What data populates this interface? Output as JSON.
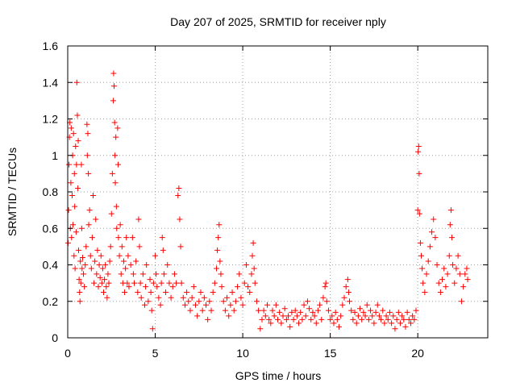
{
  "chart_data": {
    "type": "scatter",
    "title": "Day 207 of 2025, SRMTID for receiver nply",
    "xlabel": "GPS time / hours",
    "ylabel": "SRMTID / TECUs",
    "xlim": [
      0,
      24
    ],
    "ylim": [
      0,
      1.6
    ],
    "xticks": [
      0,
      5,
      10,
      15,
      20
    ],
    "xtick_labels": [
      "0",
      "5",
      "10",
      "15",
      "20"
    ],
    "yticks": [
      0,
      0.2,
      0.4,
      0.6,
      0.8,
      1,
      1.2,
      1.4,
      1.6
    ],
    "ytick_labels": [
      "0",
      "0.2",
      "0.4",
      "0.6",
      "0.8",
      "1",
      "1.2",
      "1.4",
      "1.6"
    ],
    "grid": true,
    "marker": "+",
    "color": "#ff0000",
    "series": [
      {
        "name": "SRMTID",
        "points": [
          [
            0.02,
            0.52
          ],
          [
            0.05,
            0.7
          ],
          [
            0.07,
            0.95
          ],
          [
            0.1,
            1.1
          ],
          [
            0.12,
            1.18
          ],
          [
            0.15,
            0.6
          ],
          [
            0.18,
            0.85
          ],
          [
            0.2,
            1.15
          ],
          [
            0.22,
            0.55
          ],
          [
            0.25,
            0.78
          ],
          [
            0.28,
            1.0
          ],
          [
            0.3,
            0.62
          ],
          [
            0.33,
            1.12
          ],
          [
            0.36,
            0.45
          ],
          [
            0.38,
            0.9
          ],
          [
            0.4,
            0.72
          ],
          [
            0.42,
            0.38
          ],
          [
            0.45,
            1.05
          ],
          [
            0.48,
            0.58
          ],
          [
            0.5,
            0.95
          ],
          [
            0.52,
            1.4
          ],
          [
            0.55,
            1.22
          ],
          [
            0.58,
            0.82
          ],
          [
            0.6,
            1.08
          ],
          [
            0.62,
            0.48
          ],
          [
            0.65,
            0.32
          ],
          [
            0.68,
            0.25
          ],
          [
            0.7,
            0.2
          ],
          [
            0.72,
            0.42
          ],
          [
            0.75,
            0.3
          ],
          [
            0.78,
            0.95
          ],
          [
            0.8,
            0.6
          ],
          [
            0.82,
            0.38
          ],
          [
            0.85,
            0.44
          ],
          [
            0.9,
            0.35
          ],
          [
            0.95,
            0.28
          ],
          [
            1.0,
            0.4
          ],
          [
            1.05,
            0.5
          ],
          [
            1.1,
            1.17
          ],
          [
            1.12,
            1.0
          ],
          [
            1.15,
            1.12
          ],
          [
            1.18,
            0.9
          ],
          [
            1.2,
            0.62
          ],
          [
            1.25,
            0.7
          ],
          [
            1.3,
            0.45
          ],
          [
            1.35,
            0.38
          ],
          [
            1.4,
            0.55
          ],
          [
            1.45,
            0.78
          ],
          [
            1.5,
            0.3
          ],
          [
            1.55,
            0.42
          ],
          [
            1.6,
            0.65
          ],
          [
            1.65,
            0.35
          ],
          [
            1.7,
            0.48
          ],
          [
            1.75,
            0.28
          ],
          [
            1.8,
            0.4
          ],
          [
            1.85,
            0.33
          ],
          [
            1.9,
            0.45
          ],
          [
            1.95,
            0.3
          ],
          [
            2.0,
            0.38
          ],
          [
            2.05,
            0.25
          ],
          [
            2.1,
            0.32
          ],
          [
            2.15,
            0.4
          ],
          [
            2.2,
            0.28
          ],
          [
            2.25,
            0.22
          ],
          [
            2.3,
            0.35
          ],
          [
            2.35,
            0.3
          ],
          [
            2.4,
            0.42
          ],
          [
            2.45,
            0.5
          ],
          [
            2.5,
            0.68
          ],
          [
            2.55,
            0.9
          ],
          [
            2.6,
            1.3
          ],
          [
            2.62,
            1.45
          ],
          [
            2.65,
            1.38
          ],
          [
            2.68,
            1.18
          ],
          [
            2.7,
            1.0
          ],
          [
            2.72,
            0.85
          ],
          [
            2.75,
            1.1
          ],
          [
            2.78,
            0.72
          ],
          [
            2.8,
            0.6
          ],
          [
            2.85,
            1.15
          ],
          [
            2.88,
            0.95
          ],
          [
            2.9,
            0.55
          ],
          [
            2.95,
            0.45
          ],
          [
            3.0,
            0.62
          ],
          [
            3.05,
            0.35
          ],
          [
            3.1,
            0.5
          ],
          [
            3.15,
            0.3
          ],
          [
            3.2,
            0.42
          ],
          [
            3.25,
            0.25
          ],
          [
            3.3,
            0.38
          ],
          [
            3.35,
            0.55
          ],
          [
            3.4,
            0.3
          ],
          [
            3.45,
            0.45
          ],
          [
            3.5,
            0.28
          ],
          [
            3.6,
            0.4
          ],
          [
            3.7,
            0.55
          ],
          [
            3.75,
            0.35
          ],
          [
            3.8,
            0.3
          ],
          [
            3.9,
            0.42
          ],
          [
            4.0,
            0.25
          ],
          [
            4.05,
            0.65
          ],
          [
            4.1,
            0.5
          ],
          [
            4.15,
            0.3
          ],
          [
            4.2,
            0.22
          ],
          [
            4.3,
            0.35
          ],
          [
            4.4,
            0.18
          ],
          [
            4.45,
            0.28
          ],
          [
            4.5,
            0.4
          ],
          [
            4.6,
            0.2
          ],
          [
            4.7,
            0.32
          ],
          [
            4.75,
            0.25
          ],
          [
            4.8,
            0.15
          ],
          [
            4.85,
            0.05
          ],
          [
            4.9,
            0.3
          ],
          [
            5.0,
            0.45
          ],
          [
            5.05,
            0.35
          ],
          [
            5.1,
            0.28
          ],
          [
            5.2,
            0.22
          ],
          [
            5.3,
            0.18
          ],
          [
            5.35,
            0.3
          ],
          [
            5.4,
            0.55
          ],
          [
            5.45,
            0.48
          ],
          [
            5.5,
            0.35
          ],
          [
            5.6,
            0.25
          ],
          [
            5.7,
            0.4
          ],
          [
            5.8,
            0.3
          ],
          [
            5.9,
            0.22
          ],
          [
            6.0,
            0.28
          ],
          [
            6.1,
            0.35
          ],
          [
            6.2,
            0.3
          ],
          [
            6.3,
            0.78
          ],
          [
            6.35,
            0.82
          ],
          [
            6.4,
            0.65
          ],
          [
            6.45,
            0.5
          ],
          [
            6.5,
            0.3
          ],
          [
            6.6,
            0.22
          ],
          [
            6.7,
            0.18
          ],
          [
            6.8,
            0.25
          ],
          [
            6.9,
            0.2
          ],
          [
            7.0,
            0.15
          ],
          [
            7.1,
            0.22
          ],
          [
            7.2,
            0.28
          ],
          [
            7.3,
            0.18
          ],
          [
            7.4,
            0.12
          ],
          [
            7.5,
            0.2
          ],
          [
            7.6,
            0.25
          ],
          [
            7.7,
            0.15
          ],
          [
            7.8,
            0.22
          ],
          [
            7.9,
            0.18
          ],
          [
            8.0,
            0.1
          ],
          [
            8.1,
            0.2
          ],
          [
            8.2,
            0.15
          ],
          [
            8.3,
            0.25
          ],
          [
            8.4,
            0.3
          ],
          [
            8.5,
            0.38
          ],
          [
            8.55,
            0.48
          ],
          [
            8.6,
            0.55
          ],
          [
            8.65,
            0.62
          ],
          [
            8.7,
            0.42
          ],
          [
            8.75,
            0.35
          ],
          [
            8.8,
            0.28
          ],
          [
            8.9,
            0.2
          ],
          [
            9.0,
            0.15
          ],
          [
            9.1,
            0.22
          ],
          [
            9.2,
            0.12
          ],
          [
            9.3,
            0.18
          ],
          [
            9.4,
            0.25
          ],
          [
            9.5,
            0.15
          ],
          [
            9.6,
            0.2
          ],
          [
            9.7,
            0.28
          ],
          [
            9.8,
            0.35
          ],
          [
            9.9,
            0.22
          ],
          [
            10.0,
            0.18
          ],
          [
            10.1,
            0.3
          ],
          [
            10.2,
            0.4
          ],
          [
            10.3,
            0.28
          ],
          [
            10.4,
            0.25
          ],
          [
            10.5,
            0.35
          ],
          [
            10.55,
            0.45
          ],
          [
            10.6,
            0.52
          ],
          [
            10.65,
            0.38
          ],
          [
            10.7,
            0.3
          ],
          [
            10.8,
            0.2
          ],
          [
            10.9,
            0.15
          ],
          [
            11.0,
            0.05
          ],
          [
            11.1,
            0.1
          ],
          [
            11.2,
            0.15
          ],
          [
            11.3,
            0.12
          ],
          [
            11.4,
            0.18
          ],
          [
            11.5,
            0.1
          ],
          [
            11.6,
            0.08
          ],
          [
            11.7,
            0.15
          ],
          [
            11.8,
            0.12
          ],
          [
            11.9,
            0.18
          ],
          [
            12.0,
            0.1
          ],
          [
            12.1,
            0.14
          ],
          [
            12.2,
            0.08
          ],
          [
            12.3,
            0.12
          ],
          [
            12.4,
            0.16
          ],
          [
            12.5,
            0.1
          ],
          [
            12.6,
            0.12
          ],
          [
            12.7,
            0.06
          ],
          [
            12.8,
            0.14
          ],
          [
            12.9,
            0.1
          ],
          [
            13.0,
            0.15
          ],
          [
            13.1,
            0.12
          ],
          [
            13.2,
            0.08
          ],
          [
            13.3,
            0.14
          ],
          [
            13.4,
            0.1
          ],
          [
            13.5,
            0.18
          ],
          [
            13.6,
            0.12
          ],
          [
            13.7,
            0.2
          ],
          [
            13.8,
            0.16
          ],
          [
            13.9,
            0.1
          ],
          [
            14.0,
            0.14
          ],
          [
            14.1,
            0.12
          ],
          [
            14.2,
            0.08
          ],
          [
            14.3,
            0.15
          ],
          [
            14.4,
            0.18
          ],
          [
            14.5,
            0.1
          ],
          [
            14.6,
            0.22
          ],
          [
            14.7,
            0.28
          ],
          [
            14.75,
            0.3
          ],
          [
            14.8,
            0.2
          ],
          [
            14.9,
            0.15
          ],
          [
            15.0,
            0.1
          ],
          [
            15.1,
            0.12
          ],
          [
            15.2,
            0.08
          ],
          [
            15.3,
            0.14
          ],
          [
            15.4,
            0.1
          ],
          [
            15.5,
            0.06
          ],
          [
            15.6,
            0.12
          ],
          [
            15.7,
            0.18
          ],
          [
            15.8,
            0.22
          ],
          [
            15.9,
            0.28
          ],
          [
            16.0,
            0.32
          ],
          [
            16.05,
            0.25
          ],
          [
            16.1,
            0.2
          ],
          [
            16.2,
            0.15
          ],
          [
            16.3,
            0.1
          ],
          [
            16.4,
            0.14
          ],
          [
            16.5,
            0.08
          ],
          [
            16.6,
            0.12
          ],
          [
            16.7,
            0.16
          ],
          [
            16.8,
            0.1
          ],
          [
            16.9,
            0.14
          ],
          [
            17.0,
            0.12
          ],
          [
            17.1,
            0.18
          ],
          [
            17.2,
            0.1
          ],
          [
            17.3,
            0.15
          ],
          [
            17.4,
            0.12
          ],
          [
            17.5,
            0.08
          ],
          [
            17.6,
            0.14
          ],
          [
            17.7,
            0.18
          ],
          [
            17.8,
            0.12
          ],
          [
            17.9,
            0.1
          ],
          [
            18.0,
            0.15
          ],
          [
            18.1,
            0.08
          ],
          [
            18.2,
            0.12
          ],
          [
            18.3,
            0.1
          ],
          [
            18.4,
            0.14
          ],
          [
            18.5,
            0.08
          ],
          [
            18.6,
            0.12
          ],
          [
            18.7,
            0.05
          ],
          [
            18.8,
            0.1
          ],
          [
            18.9,
            0.14
          ],
          [
            19.0,
            0.08
          ],
          [
            19.1,
            0.12
          ],
          [
            19.2,
            0.1
          ],
          [
            19.3,
            0.06
          ],
          [
            19.4,
            0.14
          ],
          [
            19.5,
            0.1
          ],
          [
            19.6,
            0.08
          ],
          [
            19.7,
            0.12
          ],
          [
            19.8,
            0.1
          ],
          [
            19.9,
            0.15
          ],
          [
            20.0,
            0.7
          ],
          [
            20.02,
            1.02
          ],
          [
            20.05,
            1.05
          ],
          [
            20.08,
            0.9
          ],
          [
            20.1,
            0.68
          ],
          [
            20.15,
            0.52
          ],
          [
            20.2,
            0.45
          ],
          [
            20.25,
            0.38
          ],
          [
            20.3,
            0.3
          ],
          [
            20.4,
            0.25
          ],
          [
            20.5,
            0.35
          ],
          [
            20.6,
            0.42
          ],
          [
            20.7,
            0.5
          ],
          [
            20.8,
            0.58
          ],
          [
            20.9,
            0.65
          ],
          [
            21.0,
            0.55
          ],
          [
            21.1,
            0.4
          ],
          [
            21.2,
            0.3
          ],
          [
            21.3,
            0.25
          ],
          [
            21.4,
            0.32
          ],
          [
            21.5,
            0.38
          ],
          [
            21.6,
            0.28
          ],
          [
            21.7,
            0.35
          ],
          [
            21.8,
            0.45
          ],
          [
            21.85,
            0.62
          ],
          [
            21.9,
            0.7
          ],
          [
            21.95,
            0.55
          ],
          [
            22.0,
            0.4
          ],
          [
            22.1,
            0.3
          ],
          [
            22.2,
            0.38
          ],
          [
            22.3,
            0.45
          ],
          [
            22.4,
            0.35
          ],
          [
            22.5,
            0.2
          ],
          [
            22.6,
            0.28
          ],
          [
            22.7,
            0.35
          ],
          [
            22.8,
            0.38
          ],
          [
            22.85,
            0.32
          ]
        ]
      }
    ]
  }
}
